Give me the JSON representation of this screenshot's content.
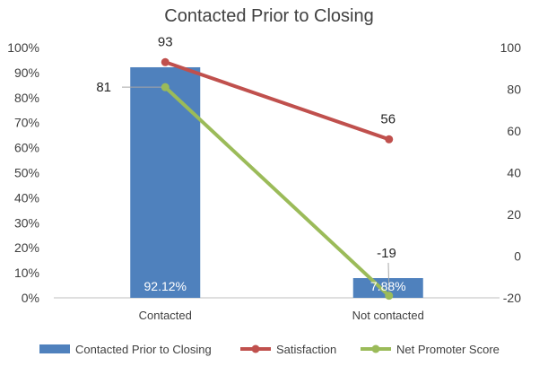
{
  "chart_data": {
    "type": "bar",
    "title": "Contacted Prior to Closing",
    "categories": [
      "Contacted",
      "Not contacted"
    ],
    "bar_series": {
      "name": "Contacted Prior to Closing",
      "values": [
        92.12,
        7.88
      ],
      "labels": [
        "92.12%",
        "7.88%"
      ],
      "color": "#4f81bd",
      "axis": "left"
    },
    "line_series": [
      {
        "name": "Satisfaction",
        "values": [
          93,
          56
        ],
        "labels": [
          "93",
          "56"
        ],
        "color": "#c0504d",
        "axis": "right"
      },
      {
        "name": "Net Promoter Score",
        "values": [
          81,
          -19
        ],
        "labels": [
          "81",
          "-19"
        ],
        "color": "#9bbb59",
        "axis": "right"
      }
    ],
    "left_axis": {
      "min": 0,
      "max": 100,
      "step": 10,
      "ticks": [
        "0%",
        "10%",
        "20%",
        "30%",
        "40%",
        "50%",
        "60%",
        "70%",
        "80%",
        "90%",
        "100%"
      ]
    },
    "right_axis": {
      "min": -20,
      "max": 100,
      "step": 20,
      "ticks": [
        "-20",
        "0",
        "20",
        "40",
        "60",
        "80",
        "100"
      ]
    },
    "grid": false,
    "legend_position": "bottom"
  }
}
